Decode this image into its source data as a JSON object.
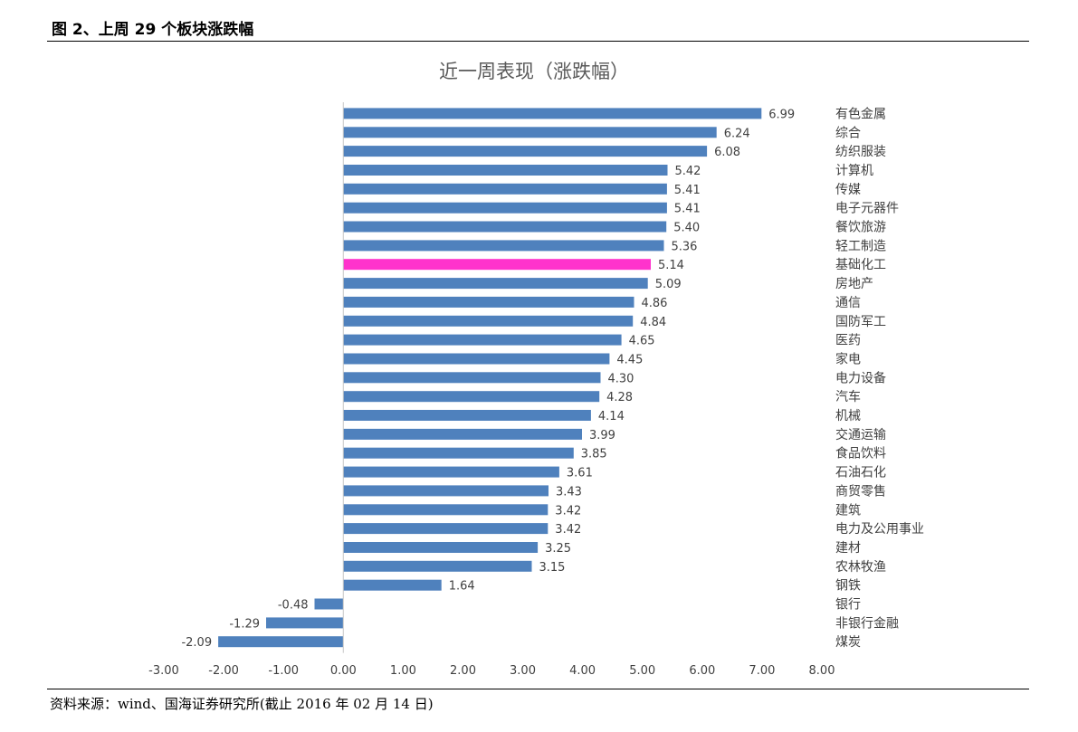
{
  "figure_caption": "图 2、上周 29 个板块涨跌幅",
  "source_note": "资料来源：wind、国海证券研究所(截止 2016 年 02 月 14 日)",
  "colors": {
    "bar": "#4f81bd",
    "highlight_bar": "#ff33cc",
    "axis": "#c8c8c8"
  },
  "chart_data": {
    "type": "bar",
    "orientation": "horizontal",
    "title": "近一周表现（涨跌幅）",
    "xlabel": "",
    "ylabel": "",
    "xlim": [
      -3.0,
      8.0
    ],
    "x_ticks": [
      "-3.00",
      "-2.00",
      "-1.00",
      "0.00",
      "1.00",
      "2.00",
      "3.00",
      "4.00",
      "5.00",
      "6.00",
      "7.00",
      "8.00"
    ],
    "grid": false,
    "highlight_category": "基础化工",
    "categories": [
      "有色金属",
      "综合",
      "纺织服装",
      "计算机",
      "传媒",
      "电子元器件",
      "餐饮旅游",
      "轻工制造",
      "基础化工",
      "房地产",
      "通信",
      "国防军工",
      "医药",
      "家电",
      "电力设备",
      "汽车",
      "机械",
      "交通运输",
      "食品饮料",
      "石油石化",
      "商贸零售",
      "建筑",
      "电力及公用事业",
      "建材",
      "农林牧渔",
      "钢铁",
      "银行",
      "非银行金融",
      "煤炭"
    ],
    "values": [
      6.99,
      6.24,
      6.08,
      5.42,
      5.41,
      5.41,
      5.4,
      5.36,
      5.14,
      5.09,
      4.86,
      4.84,
      4.65,
      4.45,
      4.3,
      4.28,
      4.14,
      3.99,
      3.85,
      3.61,
      3.43,
      3.42,
      3.42,
      3.25,
      3.15,
      1.64,
      -0.48,
      -1.29,
      -2.09
    ],
    "value_labels": [
      "6.99",
      "6.24",
      "6.08",
      "5.42",
      "5.41",
      "5.41",
      "5.40",
      "5.36",
      "5.14",
      "5.09",
      "4.86",
      "4.84",
      "4.65",
      "4.45",
      "4.30",
      "4.28",
      "4.14",
      "3.99",
      "3.85",
      "3.61",
      "3.43",
      "3.42",
      "3.42",
      "3.25",
      "3.15",
      "1.64",
      "-0.48",
      "-1.29",
      "-2.09"
    ]
  }
}
